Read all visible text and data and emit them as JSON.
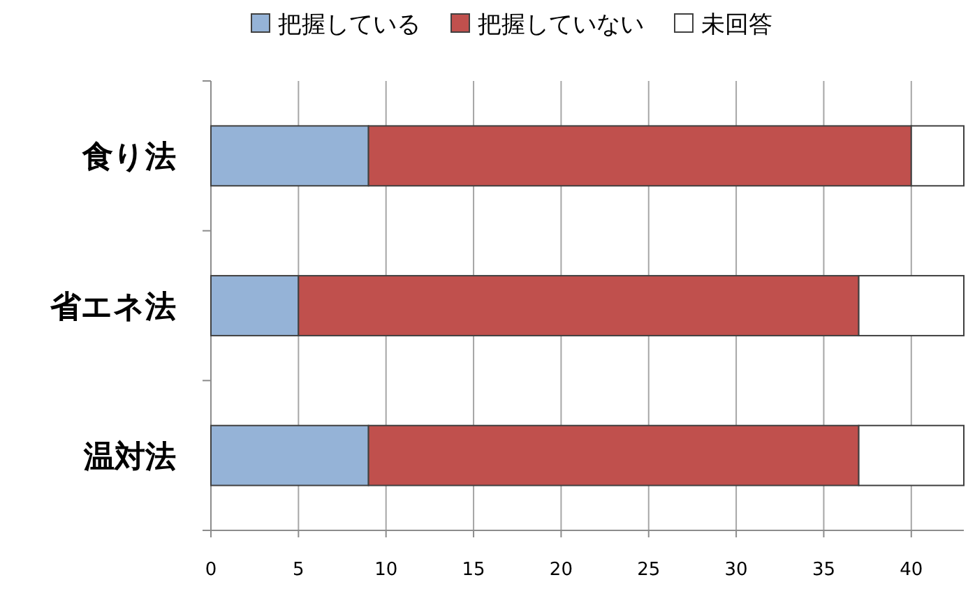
{
  "chart_data": {
    "type": "bar",
    "orientation": "horizontal",
    "stacked": true,
    "categories": [
      "食り法",
      "省エネ法",
      "温対法"
    ],
    "series": [
      {
        "name": "把握している",
        "color": "#95b3d7",
        "values": [
          9,
          5,
          9
        ]
      },
      {
        "name": "把握していない",
        "color": "#c0504d",
        "values": [
          31,
          32,
          28
        ]
      },
      {
        "name": "未回答",
        "color": "#ffffff",
        "values": [
          3,
          6,
          6
        ]
      }
    ],
    "xlim": [
      0,
      43
    ],
    "xticks": [
      0,
      5,
      10,
      15,
      20,
      25,
      30,
      35,
      40
    ],
    "grid": "x",
    "legend": "top"
  }
}
